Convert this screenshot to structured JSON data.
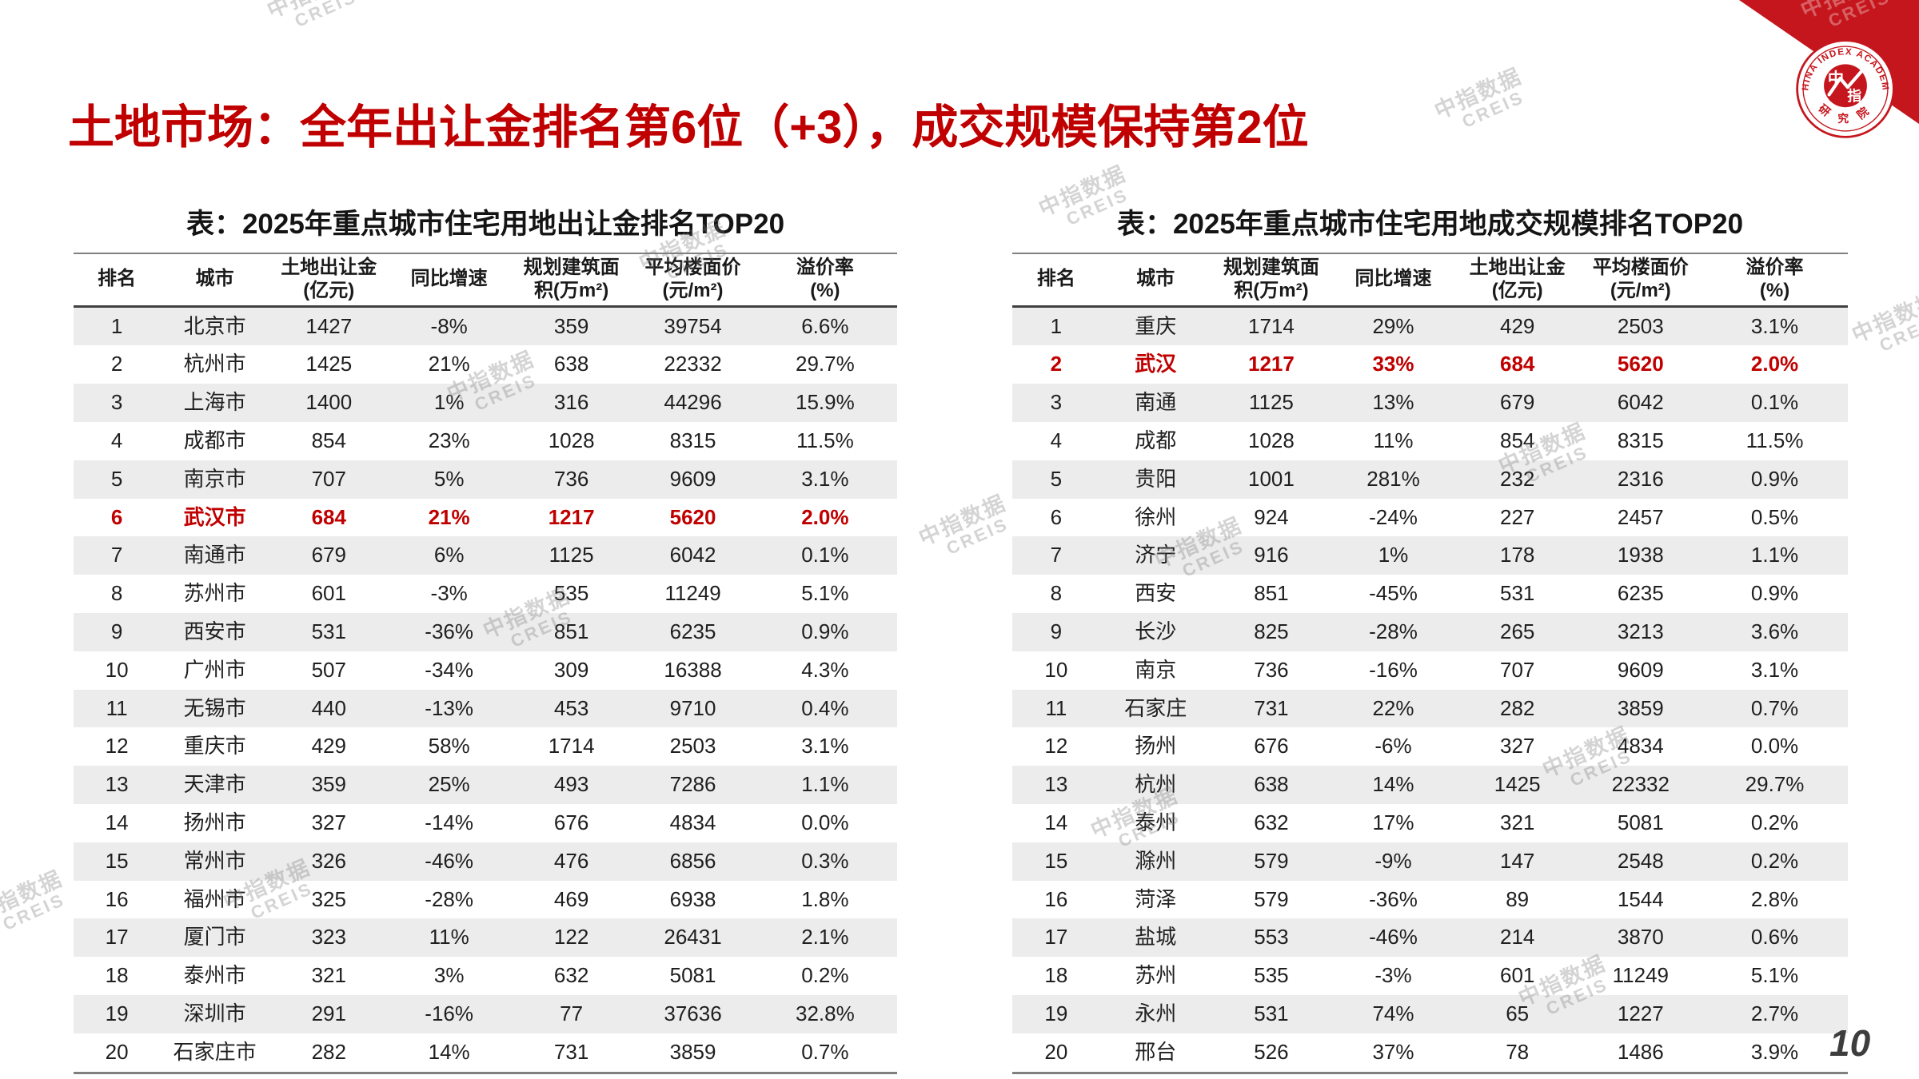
{
  "page": {
    "title": "土地市场：全年出让金排名第6位（+3），成交规模保持第2位",
    "page_number": "10"
  },
  "logo": {
    "arc_top": "CHINA INDEX ACADEMY",
    "char_left": "中",
    "char_right": "指",
    "arc_bottom": "研 究 院",
    "ribbon_color": "#c5161d"
  },
  "watermark": {
    "zh": "中指数据",
    "en": "CREIS"
  },
  "colors": {
    "title_red": "#c00000",
    "highlight_red": "#c00000",
    "row_stripe": "#ececec"
  },
  "tables": {
    "left": {
      "caption": "表：2025年重点城市住宅用地出让金排名TOP20",
      "headers": [
        "排名",
        "城市",
        "土地出让金\n(亿元)",
        "同比增速",
        "规划建筑面\n积(万m²)",
        "平均楼面价\n(元/m²)",
        "溢价率\n(%)"
      ],
      "rows": [
        {
          "cells": [
            "1",
            "北京市",
            "1427",
            "-8%",
            "359",
            "39754",
            "6.6%"
          ]
        },
        {
          "cells": [
            "2",
            "杭州市",
            "1425",
            "21%",
            "638",
            "22332",
            "29.7%"
          ]
        },
        {
          "cells": [
            "3",
            "上海市",
            "1400",
            "1%",
            "316",
            "44296",
            "15.9%"
          ]
        },
        {
          "cells": [
            "4",
            "成都市",
            "854",
            "23%",
            "1028",
            "8315",
            "11.5%"
          ]
        },
        {
          "cells": [
            "5",
            "南京市",
            "707",
            "5%",
            "736",
            "9609",
            "3.1%"
          ]
        },
        {
          "cells": [
            "6",
            "武汉市",
            "684",
            "21%",
            "1217",
            "5620",
            "2.0%"
          ],
          "highlight": true
        },
        {
          "cells": [
            "7",
            "南通市",
            "679",
            "6%",
            "1125",
            "6042",
            "0.1%"
          ]
        },
        {
          "cells": [
            "8",
            "苏州市",
            "601",
            "-3%",
            "535",
            "11249",
            "5.1%"
          ]
        },
        {
          "cells": [
            "9",
            "西安市",
            "531",
            "-36%",
            "851",
            "6235",
            "0.9%"
          ]
        },
        {
          "cells": [
            "10",
            "广州市",
            "507",
            "-34%",
            "309",
            "16388",
            "4.3%"
          ]
        },
        {
          "cells": [
            "11",
            "无锡市",
            "440",
            "-13%",
            "453",
            "9710",
            "0.4%"
          ]
        },
        {
          "cells": [
            "12",
            "重庆市",
            "429",
            "58%",
            "1714",
            "2503",
            "3.1%"
          ]
        },
        {
          "cells": [
            "13",
            "天津市",
            "359",
            "25%",
            "493",
            "7286",
            "1.1%"
          ]
        },
        {
          "cells": [
            "14",
            "扬州市",
            "327",
            "-14%",
            "676",
            "4834",
            "0.0%"
          ]
        },
        {
          "cells": [
            "15",
            "常州市",
            "326",
            "-46%",
            "476",
            "6856",
            "0.3%"
          ]
        },
        {
          "cells": [
            "16",
            "福州市",
            "325",
            "-28%",
            "469",
            "6938",
            "1.8%"
          ]
        },
        {
          "cells": [
            "17",
            "厦门市",
            "323",
            "11%",
            "122",
            "26431",
            "2.1%"
          ]
        },
        {
          "cells": [
            "18",
            "泰州市",
            "321",
            "3%",
            "632",
            "5081",
            "0.2%"
          ]
        },
        {
          "cells": [
            "19",
            "深圳市",
            "291",
            "-16%",
            "77",
            "37636",
            "32.8%"
          ]
        },
        {
          "cells": [
            "20",
            "石家庄市",
            "282",
            "14%",
            "731",
            "3859",
            "0.7%"
          ]
        }
      ]
    },
    "right": {
      "caption": "表：2025年重点城市住宅用地成交规模排名TOP20",
      "headers": [
        "排名",
        "城市",
        "规划建筑面\n积(万m²)",
        "同比增速",
        "土地出让金\n(亿元)",
        "平均楼面价\n(元/m²)",
        "溢价率\n(%)"
      ],
      "rows": [
        {
          "cells": [
            "1",
            "重庆",
            "1714",
            "29%",
            "429",
            "2503",
            "3.1%"
          ]
        },
        {
          "cells": [
            "2",
            "武汉",
            "1217",
            "33%",
            "684",
            "5620",
            "2.0%"
          ],
          "highlight": true
        },
        {
          "cells": [
            "3",
            "南通",
            "1125",
            "13%",
            "679",
            "6042",
            "0.1%"
          ]
        },
        {
          "cells": [
            "4",
            "成都",
            "1028",
            "11%",
            "854",
            "8315",
            "11.5%"
          ]
        },
        {
          "cells": [
            "5",
            "贵阳",
            "1001",
            "281%",
            "232",
            "2316",
            "0.9%"
          ]
        },
        {
          "cells": [
            "6",
            "徐州",
            "924",
            "-24%",
            "227",
            "2457",
            "0.5%"
          ]
        },
        {
          "cells": [
            "7",
            "济宁",
            "916",
            "1%",
            "178",
            "1938",
            "1.1%"
          ]
        },
        {
          "cells": [
            "8",
            "西安",
            "851",
            "-45%",
            "531",
            "6235",
            "0.9%"
          ]
        },
        {
          "cells": [
            "9",
            "长沙",
            "825",
            "-28%",
            "265",
            "3213",
            "3.6%"
          ]
        },
        {
          "cells": [
            "10",
            "南京",
            "736",
            "-16%",
            "707",
            "9609",
            "3.1%"
          ]
        },
        {
          "cells": [
            "11",
            "石家庄",
            "731",
            "22%",
            "282",
            "3859",
            "0.7%"
          ]
        },
        {
          "cells": [
            "12",
            "扬州",
            "676",
            "-6%",
            "327",
            "4834",
            "0.0%"
          ]
        },
        {
          "cells": [
            "13",
            "杭州",
            "638",
            "14%",
            "1425",
            "22332",
            "29.7%"
          ]
        },
        {
          "cells": [
            "14",
            "泰州",
            "632",
            "17%",
            "321",
            "5081",
            "0.2%"
          ]
        },
        {
          "cells": [
            "15",
            "滁州",
            "579",
            "-9%",
            "147",
            "2548",
            "0.2%"
          ]
        },
        {
          "cells": [
            "16",
            "菏泽",
            "579",
            "-36%",
            "89",
            "1544",
            "2.8%"
          ]
        },
        {
          "cells": [
            "17",
            "盐城",
            "553",
            "-46%",
            "214",
            "3870",
            "0.6%"
          ]
        },
        {
          "cells": [
            "18",
            "苏州",
            "535",
            "-3%",
            "601",
            "11249",
            "5.1%"
          ]
        },
        {
          "cells": [
            "19",
            "永州",
            "531",
            "74%",
            "65",
            "1227",
            "2.7%"
          ]
        },
        {
          "cells": [
            "20",
            "邢台",
            "526",
            "37%",
            "78",
            "1486",
            "3.9%"
          ]
        }
      ]
    }
  }
}
